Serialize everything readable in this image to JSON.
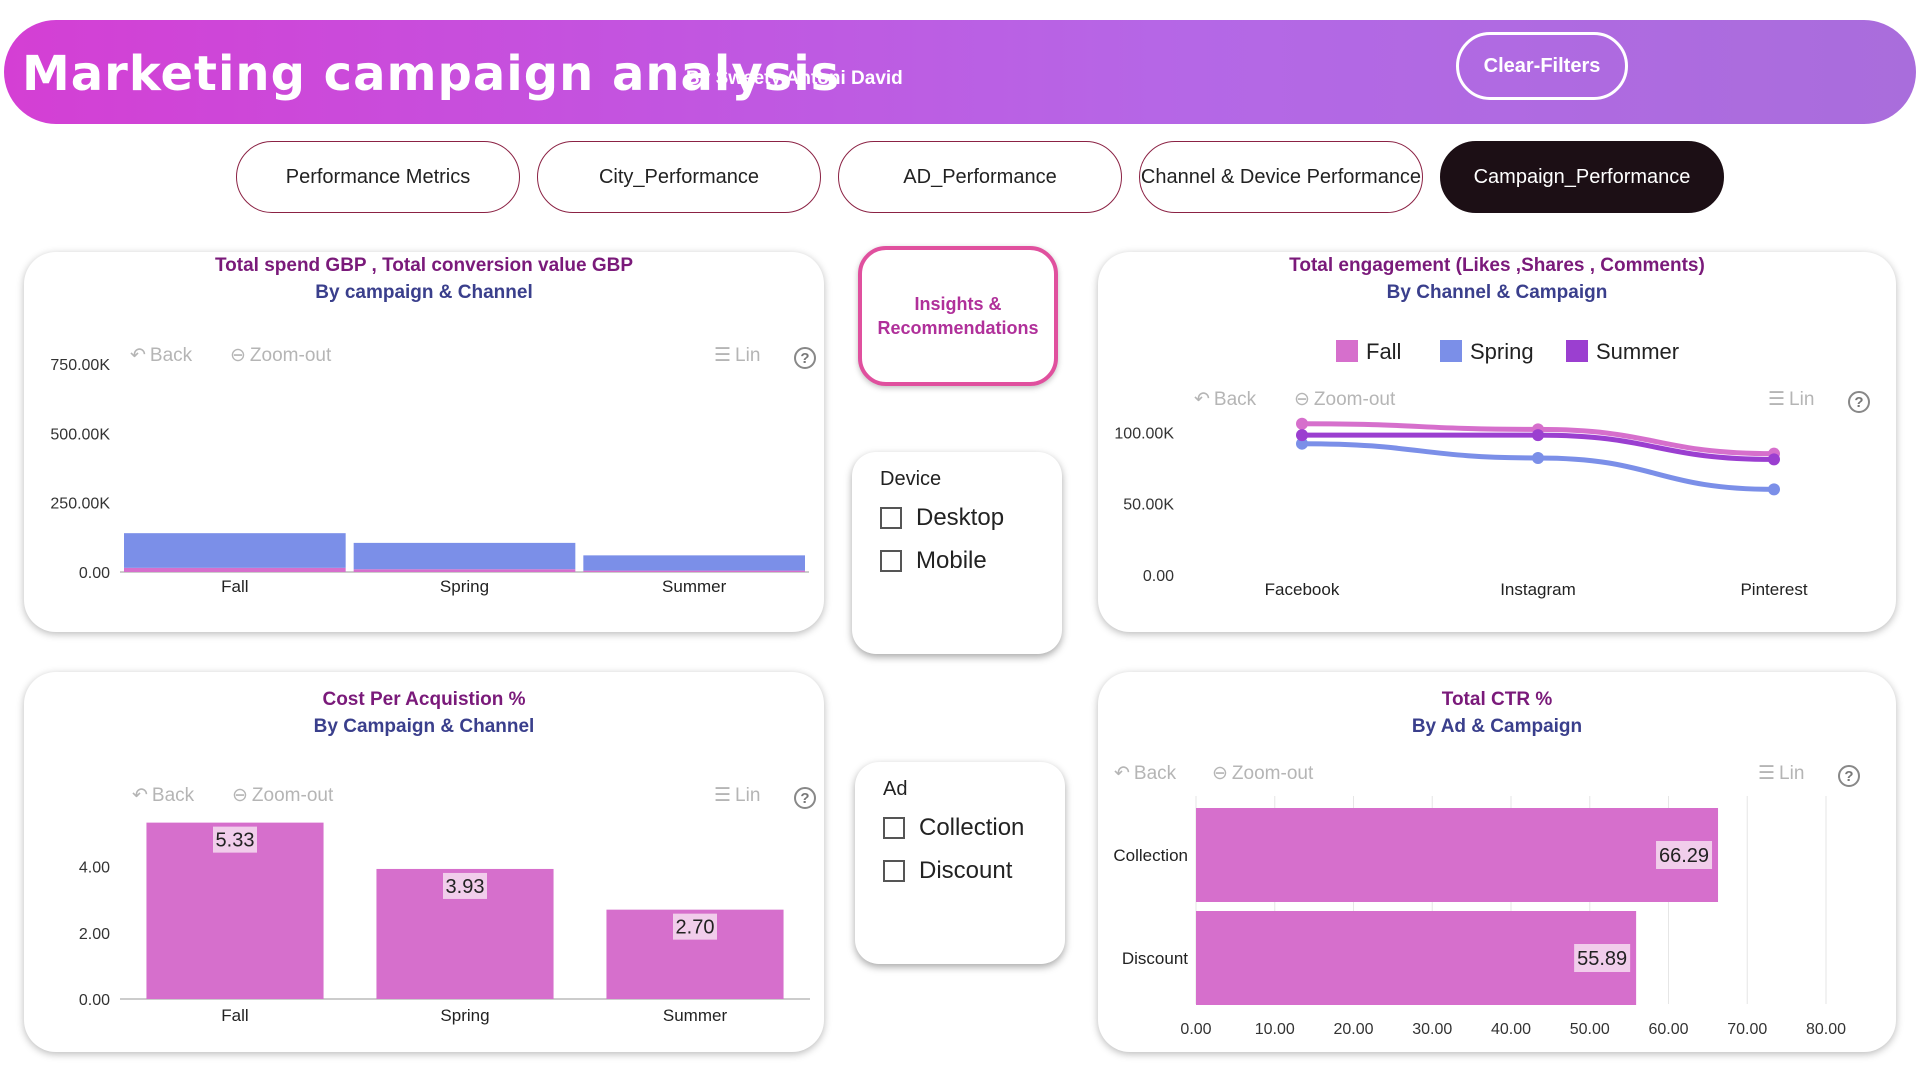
{
  "header": {
    "title": "Marketing campaign analysis",
    "subtitle": "By Sweety Antoni David",
    "clear_filters_label": "Clear-Filters"
  },
  "tabs": [
    {
      "label": "Performance Metrics",
      "active": false
    },
    {
      "label": "City_Performance",
      "active": false
    },
    {
      "label": "AD_Performance",
      "active": false
    },
    {
      "label": "Channel & Device Performance",
      "active": false
    },
    {
      "label": "Campaign_Performance",
      "active": true
    }
  ],
  "toolbar": {
    "back": "Back",
    "zoom_out": "Zoom-out",
    "lin": "Lin",
    "help": "?"
  },
  "insights_button": {
    "line1": "Insights &",
    "line2": "Recommendations"
  },
  "device_slicer": {
    "title": "Device",
    "options": [
      "Desktop",
      "Mobile"
    ]
  },
  "ad_slicer": {
    "title": "Ad",
    "options": [
      "Collection",
      "Discount"
    ]
  },
  "colors": {
    "fall": "#d66fcc",
    "spring": "#7b8fe8",
    "summer": "#9b3fd0",
    "accent": "#d43fd4"
  },
  "chart_data": [
    {
      "type": "bar",
      "title": "Total spend GBP , Total conversion value GBP",
      "subtitle": "By campaign & Channel",
      "categories": [
        "Fall",
        "Spring",
        "Summer"
      ],
      "series": [
        {
          "name": "Total spend GBP",
          "values": [
            15,
            10,
            5
          ]
        },
        {
          "name": "Total conversion value GBP",
          "values": [
            125,
            95,
            55
          ]
        }
      ],
      "ylim": [
        0,
        750
      ],
      "yticks": [
        "0.00",
        "250.00K",
        "500.00K",
        "750.00K"
      ]
    },
    {
      "type": "line",
      "title": "Total engagement (Likes ,Shares , Comments)",
      "subtitle": "By Channel & Campaign",
      "categories": [
        "Facebook",
        "Instagram",
        "Pinterest"
      ],
      "series": [
        {
          "name": "Fall",
          "values": [
            106000,
            102000,
            85000
          ]
        },
        {
          "name": "Spring",
          "values": [
            92000,
            82000,
            60000
          ]
        },
        {
          "name": "Summer",
          "values": [
            98000,
            98000,
            81000
          ]
        }
      ],
      "ylim": [
        0,
        110000
      ],
      "yticks": [
        "0.00",
        "50.00K",
        "100.00K"
      ],
      "legend": "top"
    },
    {
      "type": "bar",
      "title": "Cost Per Acquistion %",
      "subtitle": "By Campaign & Channel",
      "categories": [
        "Fall",
        "Spring",
        "Summer"
      ],
      "values": [
        5.33,
        3.93,
        2.7
      ],
      "labels": [
        "5.33",
        "3.93",
        "2.70"
      ],
      "ylim": [
        0,
        5.5
      ],
      "yticks": [
        "0.00",
        "2.00",
        "4.00"
      ]
    },
    {
      "type": "bar",
      "orientation": "horizontal",
      "title": "Total CTR %",
      "subtitle": "By Ad & Campaign",
      "categories": [
        "Collection",
        "Discount"
      ],
      "values": [
        66.29,
        55.89
      ],
      "labels": [
        "66.29",
        "55.89"
      ],
      "xlim": [
        0,
        80
      ],
      "xticks": [
        "0.00",
        "10.00",
        "20.00",
        "30.00",
        "40.00",
        "50.00",
        "60.00",
        "70.00",
        "80.00"
      ]
    }
  ]
}
